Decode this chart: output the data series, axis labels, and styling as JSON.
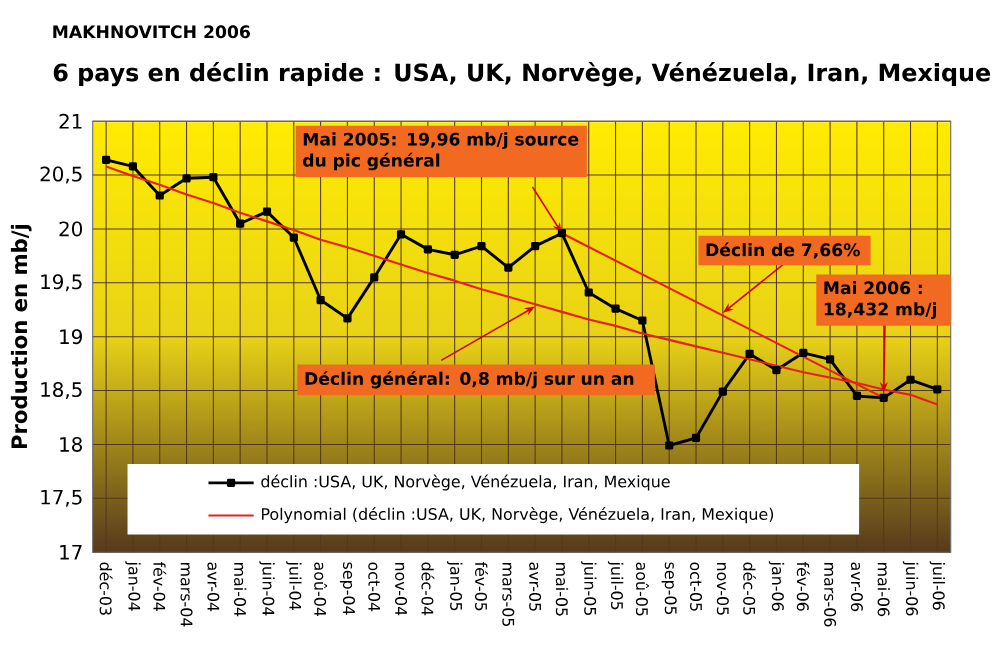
{
  "chart_data": {
    "type": "line",
    "title": "6 pays en déclin rapide : USA, UK, Norvège, Vénézuela, Iran, Mexique",
    "ylabel": "Production en mb/j",
    "categories": [
      "déc-03",
      "jan-04",
      "fév-04",
      "mars-04",
      "avr-04",
      "mai-04",
      "juin-04",
      "juil-04",
      "aoû-04",
      "sep-04",
      "oct-04",
      "nov-04",
      "déc-04",
      "jan-05",
      "fév-05",
      "mars-05",
      "avr-05",
      "mai-05",
      "juin-05",
      "juil-05",
      "aoû-05",
      "sep-05",
      "oct-05",
      "nov-05",
      "déc-05",
      "jan-06",
      "fév-06",
      "mars-06",
      "avr-06",
      "mai-06",
      "juin-06",
      "juil-06"
    ],
    "series": [
      {
        "name": "déclin :USA, UK, Norvège, Vénézuela, Iran, Mexique",
        "color": "#000000",
        "marker": "square",
        "values": [
          20.64,
          20.58,
          20.31,
          20.47,
          20.48,
          20.05,
          20.16,
          19.92,
          19.34,
          19.17,
          19.55,
          19.95,
          19.81,
          19.76,
          19.84,
          19.64,
          19.84,
          19.96,
          19.41,
          19.26,
          19.15,
          17.99,
          18.06,
          18.49,
          18.84,
          18.69,
          18.85,
          18.79,
          18.45,
          18.432,
          18.6,
          18.51
        ]
      },
      {
        "name": "Polynomial (déclin :USA, UK, Norvège, Vénézuela, Iran, Mexique)",
        "color": "#e8201c",
        "values": [
          20.58,
          20.49,
          20.41,
          20.32,
          20.24,
          20.15,
          20.07,
          19.99,
          19.9,
          19.83,
          19.75,
          19.67,
          19.59,
          19.52,
          19.44,
          19.37,
          19.3,
          19.23,
          19.16,
          19.1,
          19.03,
          18.97,
          18.91,
          18.85,
          18.79,
          18.73,
          18.67,
          18.62,
          18.57,
          18.51,
          18.46,
          18.37
        ]
      },
      {
        "color": "#e8201c",
        "values": [
          null,
          null,
          null,
          null,
          null,
          null,
          null,
          null,
          null,
          null,
          null,
          null,
          null,
          null,
          null,
          null,
          null,
          19.96,
          null,
          null,
          null,
          null,
          null,
          null,
          null,
          null,
          null,
          null,
          null,
          18.432,
          null,
          null
        ]
      }
    ],
    "ylim": [
      17,
      21
    ],
    "yticks": [
      17,
      {
        "value": 17.5,
        "label": "17,5"
      },
      18,
      {
        "value": 18.5,
        "label": "18,5"
      },
      19,
      {
        "value": 19.5,
        "label": "19,5"
      },
      20,
      {
        "value": 20.5,
        "label": "20,5"
      },
      21
    ],
    "grid": true,
    "legend": "bottom left",
    "line_style": "solid",
    "annotations": [
      "MAKHNOVITCH 2006",
      {
        "text": "Mai 2005: 19,96 mb/j source du pic général",
        "x": "mai-05",
        "y": 19.96
      },
      {
        "text": "Déclin de 7,66%",
        "x": "nov-05",
        "y": 19.22
      },
      {
        "text": "Mai 2006 : 18,432 mb/j",
        "x": "mai-06",
        "y": 18.48
      },
      {
        "text": "Déclin général: 0,8 mb/j sur un an",
        "x": "avr-05",
        "y": 19.28
      }
    ]
  }
}
